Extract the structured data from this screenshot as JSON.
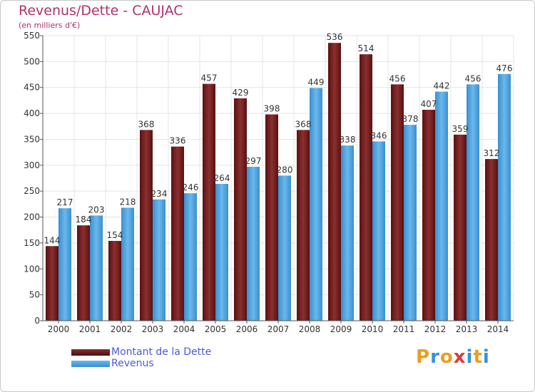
{
  "header": {
    "title": "Revenus/Dette - CAUJAC",
    "subtitle": "(en milliers d'€)"
  },
  "chart_data": {
    "type": "bar",
    "categories": [
      "2000",
      "2001",
      "2002",
      "2003",
      "2004",
      "2005",
      "2006",
      "2007",
      "2008",
      "2009",
      "2010",
      "2011",
      "2012",
      "2013",
      "2014"
    ],
    "series": [
      {
        "name": "Montant de la Dette",
        "color": "#6b1a1a",
        "values": [
          144,
          184,
          154,
          368,
          336,
          457,
          429,
          398,
          368,
          536,
          514,
          456,
          407,
          359,
          312
        ]
      },
      {
        "name": "Revenus",
        "color": "#4da3e0",
        "values": [
          217,
          203,
          218,
          234,
          246,
          264,
          297,
          280,
          449,
          338,
          346,
          378,
          442,
          456,
          476
        ]
      }
    ],
    "ylim": [
      0,
      550
    ],
    "yticks": [
      0,
      50,
      100,
      150,
      200,
      250,
      300,
      350,
      400,
      450,
      500,
      550
    ],
    "grid": true,
    "legend_position": "bottom-left"
  },
  "legend": {
    "items": [
      {
        "label": "Montant de la Dette",
        "color": "#6b1a1a"
      },
      {
        "label": "Revenus",
        "color": "#4da3e0"
      }
    ]
  },
  "brand": {
    "letters": [
      "P",
      "r",
      "o",
      "x",
      "i",
      "t",
      "i"
    ],
    "colors": [
      "#e8a020",
      "#3a8fd8",
      "#e8a020",
      "#d83a3a",
      "#3a8fd8",
      "#e8a020",
      "#3a8fd8"
    ]
  }
}
